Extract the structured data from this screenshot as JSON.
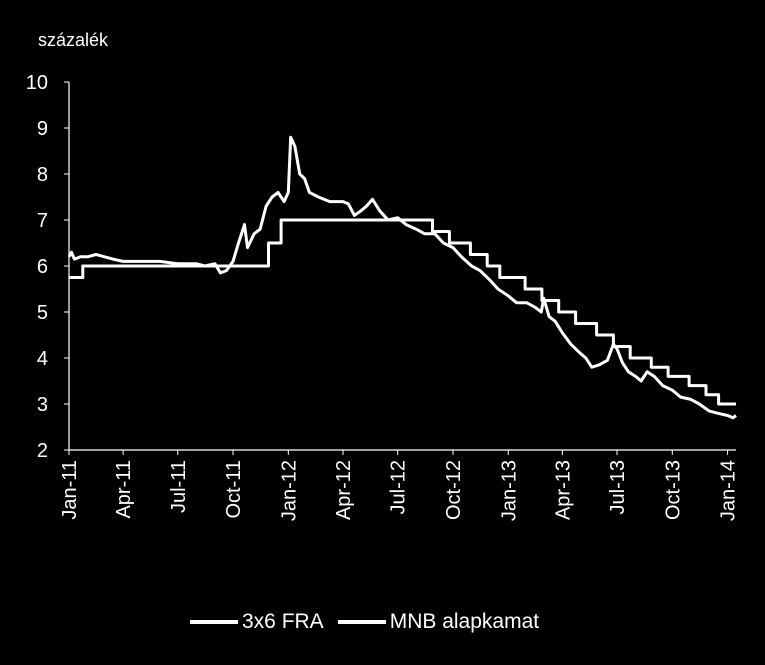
{
  "chart_data": {
    "type": "line",
    "ylabel": "százalék",
    "ylim": [
      2,
      10
    ],
    "yticks": [
      "2",
      "3",
      "4",
      "5",
      "6",
      "7",
      "8",
      "9",
      "10"
    ],
    "xlim": [
      "2011-01-01",
      "2014-01-15"
    ],
    "xticks": [
      {
        "date": "2011-01-01",
        "label": "Jan-11"
      },
      {
        "date": "2011-04-01",
        "label": "Apr-11"
      },
      {
        "date": "2011-07-01",
        "label": "Jul-11"
      },
      {
        "date": "2011-10-01",
        "label": "Oct-11"
      },
      {
        "date": "2012-01-01",
        "label": "Jan-12"
      },
      {
        "date": "2012-04-01",
        "label": "Apr-12"
      },
      {
        "date": "2012-07-01",
        "label": "Jul-12"
      },
      {
        "date": "2012-10-01",
        "label": "Oct-12"
      },
      {
        "date": "2013-01-01",
        "label": "Jan-13"
      },
      {
        "date": "2013-04-01",
        "label": "Apr-13"
      },
      {
        "date": "2013-07-01",
        "label": "Jul-13"
      },
      {
        "date": "2013-10-01",
        "label": "Oct-13"
      },
      {
        "date": "2014-01-01",
        "label": "Jan-14"
      }
    ],
    "series": [
      {
        "name": "3x6 FRA",
        "color": "#ffffff",
        "points": [
          [
            "2011-01-01",
            6.2
          ],
          [
            "2011-01-05",
            6.3
          ],
          [
            "2011-01-10",
            6.15
          ],
          [
            "2011-01-20",
            6.2
          ],
          [
            "2011-02-01",
            6.2
          ],
          [
            "2011-02-15",
            6.25
          ],
          [
            "2011-03-01",
            6.2
          ],
          [
            "2011-03-15",
            6.15
          ],
          [
            "2011-04-01",
            6.1
          ],
          [
            "2011-05-01",
            6.1
          ],
          [
            "2011-06-01",
            6.1
          ],
          [
            "2011-07-01",
            6.05
          ],
          [
            "2011-08-01",
            6.05
          ],
          [
            "2011-08-15",
            6.0
          ],
          [
            "2011-09-01",
            6.05
          ],
          [
            "2011-09-10",
            5.85
          ],
          [
            "2011-09-20",
            5.9
          ],
          [
            "2011-10-01",
            6.1
          ],
          [
            "2011-10-10",
            6.5
          ],
          [
            "2011-10-20",
            6.9
          ],
          [
            "2011-10-25",
            6.4
          ],
          [
            "2011-11-05",
            6.7
          ],
          [
            "2011-11-15",
            6.8
          ],
          [
            "2011-11-25",
            7.3
          ],
          [
            "2011-12-05",
            7.5
          ],
          [
            "2011-12-15",
            7.6
          ],
          [
            "2011-12-25",
            7.4
          ],
          [
            "2012-01-01",
            7.6
          ],
          [
            "2012-01-05",
            8.8
          ],
          [
            "2012-01-12",
            8.6
          ],
          [
            "2012-01-20",
            8.0
          ],
          [
            "2012-01-28",
            7.9
          ],
          [
            "2012-02-05",
            7.6
          ],
          [
            "2012-02-20",
            7.5
          ],
          [
            "2012-03-10",
            7.4
          ],
          [
            "2012-04-01",
            7.4
          ],
          [
            "2012-04-10",
            7.35
          ],
          [
            "2012-04-20",
            7.1
          ],
          [
            "2012-05-01",
            7.2
          ],
          [
            "2012-05-10",
            7.3
          ],
          [
            "2012-05-20",
            7.45
          ],
          [
            "2012-06-01",
            7.2
          ],
          [
            "2012-06-15",
            7.0
          ],
          [
            "2012-07-01",
            7.05
          ],
          [
            "2012-07-15",
            6.9
          ],
          [
            "2012-08-01",
            6.8
          ],
          [
            "2012-08-15",
            6.7
          ],
          [
            "2012-09-01",
            6.7
          ],
          [
            "2012-09-15",
            6.5
          ],
          [
            "2012-10-01",
            6.4
          ],
          [
            "2012-10-15",
            6.2
          ],
          [
            "2012-11-01",
            6.0
          ],
          [
            "2012-11-15",
            5.9
          ],
          [
            "2012-12-01",
            5.7
          ],
          [
            "2012-12-15",
            5.5
          ],
          [
            "2013-01-01",
            5.35
          ],
          [
            "2013-01-15",
            5.2
          ],
          [
            "2013-02-01",
            5.2
          ],
          [
            "2013-02-15",
            5.1
          ],
          [
            "2013-02-25",
            5.0
          ],
          [
            "2013-03-01",
            5.3
          ],
          [
            "2013-03-10",
            4.9
          ],
          [
            "2013-03-20",
            4.8
          ],
          [
            "2013-04-01",
            4.55
          ],
          [
            "2013-04-15",
            4.3
          ],
          [
            "2013-05-01",
            4.1
          ],
          [
            "2013-05-10",
            4.0
          ],
          [
            "2013-05-20",
            3.8
          ],
          [
            "2013-06-01",
            3.85
          ],
          [
            "2013-06-15",
            3.95
          ],
          [
            "2013-06-25",
            4.3
          ],
          [
            "2013-07-01",
            4.2
          ],
          [
            "2013-07-10",
            3.9
          ],
          [
            "2013-07-20",
            3.7
          ],
          [
            "2013-08-01",
            3.6
          ],
          [
            "2013-08-10",
            3.5
          ],
          [
            "2013-08-20",
            3.7
          ],
          [
            "2013-09-01",
            3.6
          ],
          [
            "2013-09-15",
            3.4
          ],
          [
            "2013-10-01",
            3.3
          ],
          [
            "2013-10-15",
            3.15
          ],
          [
            "2013-11-01",
            3.1
          ],
          [
            "2013-11-15",
            3.0
          ],
          [
            "2013-12-01",
            2.85
          ],
          [
            "2013-12-15",
            2.8
          ],
          [
            "2014-01-01",
            2.75
          ],
          [
            "2014-01-10",
            2.7
          ],
          [
            "2014-01-15",
            2.75
          ]
        ]
      },
      {
        "name": "MNB alapkamat",
        "color": "#ffffff",
        "step": true,
        "points": [
          [
            "2011-01-01",
            5.75
          ],
          [
            "2011-01-24",
            6.0
          ],
          [
            "2011-11-29",
            6.5
          ],
          [
            "2011-12-20",
            7.0
          ],
          [
            "2012-08-28",
            6.75
          ],
          [
            "2012-09-25",
            6.5
          ],
          [
            "2012-10-30",
            6.25
          ],
          [
            "2012-11-27",
            6.0
          ],
          [
            "2012-12-18",
            5.75
          ],
          [
            "2013-01-29",
            5.5
          ],
          [
            "2013-02-26",
            5.25
          ],
          [
            "2013-03-26",
            5.0
          ],
          [
            "2013-04-23",
            4.75
          ],
          [
            "2013-05-28",
            4.5
          ],
          [
            "2013-06-25",
            4.25
          ],
          [
            "2013-07-23",
            4.0
          ],
          [
            "2013-08-27",
            3.8
          ],
          [
            "2013-09-24",
            3.6
          ],
          [
            "2013-10-29",
            3.4
          ],
          [
            "2013-11-26",
            3.2
          ],
          [
            "2013-12-17",
            3.0
          ],
          [
            "2014-01-15",
            3.0
          ]
        ]
      }
    ],
    "legend_position": "bottom",
    "grid": false
  }
}
